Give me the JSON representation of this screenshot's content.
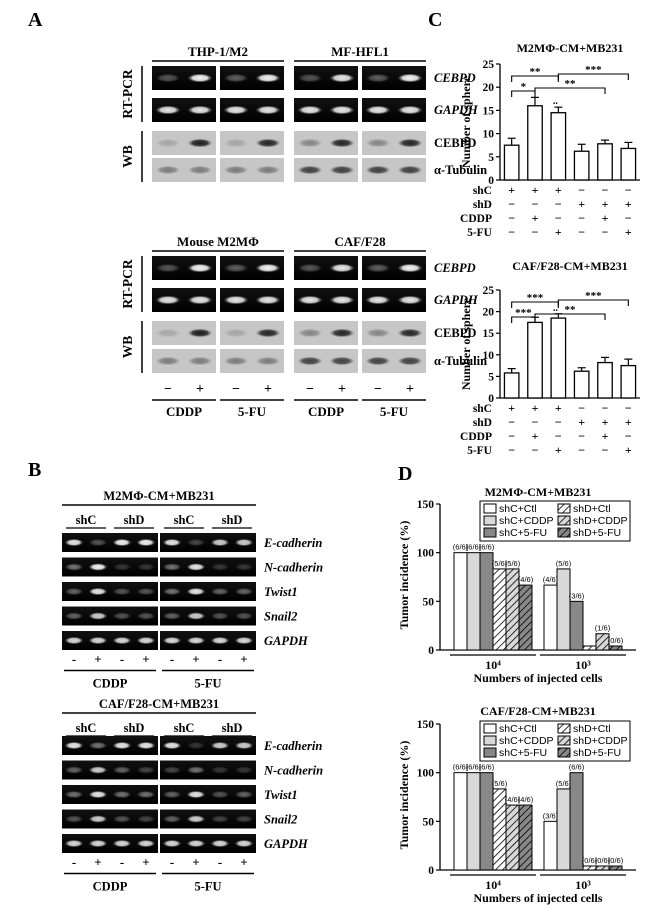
{
  "panels": {
    "A": "A",
    "B": "B",
    "C": "C",
    "D": "D"
  },
  "A": {
    "top_groups": [
      "THP-1/M2",
      "MF-HFL1"
    ],
    "bottom_groups": [
      "Mouse M2MΦ",
      "CAF/F28"
    ],
    "method_labels": [
      "RT-PCR",
      "WB"
    ],
    "genes_rt": [
      "CEBPD",
      "GAPDH"
    ],
    "genes_wb": [
      "CEBPD",
      "α-Tubulin"
    ],
    "treat_signs": [
      "−",
      "+"
    ],
    "treatments": [
      "CDDP",
      "5-FU",
      "CDDP",
      "5-FU"
    ]
  },
  "B": {
    "titles": [
      "M2MΦ-CM+MB231",
      "CAF/F28-CM+MB231"
    ],
    "sh_labels": [
      "shC",
      "shD",
      "shC",
      "shD"
    ],
    "genes": [
      "E-cadherin",
      "N-cadherin",
      "Twist1",
      "Snail2",
      "GAPDH"
    ],
    "signs": [
      "-",
      "+",
      "-",
      "+",
      "-",
      "+",
      "-",
      "+"
    ],
    "treatments": [
      "CDDP",
      "5-FU"
    ]
  },
  "C_charts": [
    {
      "title": "M2MΦ-CM+MB231",
      "ylabel": "Number of sphere",
      "ylim": [
        0,
        25
      ],
      "yticks": [
        "0",
        "5",
        "10",
        "15",
        "20",
        "25"
      ],
      "values": [
        7.5,
        16,
        14.5,
        6.2,
        7.8,
        6.8
      ],
      "errors": [
        1.5,
        1.8,
        1.2,
        1.5,
        0.8,
        1.3
      ],
      "rows": [
        {
          "label": "shC",
          "signs": [
            "+",
            "+",
            "+",
            "−",
            "−",
            "−"
          ]
        },
        {
          "label": "shD",
          "signs": [
            "−",
            "−",
            "−",
            "+",
            "+",
            "+"
          ]
        },
        {
          "label": "CDDP",
          "signs": [
            "−",
            "+",
            "−",
            "−",
            "+",
            "−"
          ]
        },
        {
          "label": "5-FU",
          "signs": [
            "−",
            "−",
            "+",
            "−",
            "−",
            "+"
          ]
        }
      ],
      "sig": [
        "**",
        "*",
        "**",
        "***",
        "**"
      ]
    },
    {
      "title": "CAF/F28-CM+MB231",
      "ylabel": "Number of sphere",
      "ylim": [
        0,
        25
      ],
      "yticks": [
        "0",
        "5",
        "10",
        "15",
        "20",
        "25"
      ],
      "values": [
        5.8,
        17.5,
        18.5,
        6.2,
        8.2,
        7.5
      ],
      "errors": [
        1.0,
        1.2,
        1.0,
        0.8,
        1.2,
        1.5
      ],
      "rows": [
        {
          "label": "shC",
          "signs": [
            "+",
            "+",
            "+",
            "−",
            "−",
            "−"
          ]
        },
        {
          "label": "shD",
          "signs": [
            "−",
            "−",
            "−",
            "+",
            "+",
            "+"
          ]
        },
        {
          "label": "CDDP",
          "signs": [
            "−",
            "+",
            "−",
            "−",
            "+",
            "−"
          ]
        },
        {
          "label": "5-FU",
          "signs": [
            "−",
            "−",
            "+",
            "−",
            "−",
            "+"
          ]
        }
      ],
      "sig": [
        "***",
        "***",
        "**",
        "***",
        "**"
      ]
    }
  ],
  "D_charts": [
    {
      "title": "M2MΦ-CM+MB231",
      "ylabel": "Tumor incidence (%)",
      "xlabel": "Numbers of injected cells",
      "ylim": [
        0,
        150
      ],
      "yticks": [
        "0",
        "50",
        "100",
        "150"
      ],
      "groups": [
        "10⁴",
        "10³"
      ],
      "legend": [
        "shC+Ctl",
        "shD+Ctl",
        "shC+CDDP",
        "shD+CDDP",
        "shC+5-FU",
        "shD+5-FU"
      ],
      "values": [
        [
          100,
          100,
          100,
          83.3,
          83.3,
          66.7
        ],
        [
          66.7,
          83.3,
          50,
          0,
          16.7,
          0
        ]
      ],
      "labels": [
        [
          "(6/6)",
          "(6/6)",
          "(6/6)",
          "(5/6)",
          "(5/6)",
          "(4/6)"
        ],
        [
          "(4/6)",
          "(5/6)",
          "(3/6)",
          "",
          "(1/6)",
          "(0/6)"
        ]
      ]
    },
    {
      "title": "CAF/F28-CM+MB231",
      "ylabel": "Tumor incidence (%)",
      "xlabel": "Numbers of injected cells",
      "ylim": [
        0,
        150
      ],
      "yticks": [
        "0",
        "50",
        "100",
        "150"
      ],
      "groups": [
        "10⁴",
        "10³"
      ],
      "legend": [
        "shC+Ctl",
        "shD+Ctl",
        "shC+CDDP",
        "shD+CDDP",
        "shC+5-FU",
        "shD+5-FU"
      ],
      "values": [
        [
          100,
          100,
          100,
          83.3,
          66.7,
          66.7
        ],
        [
          50,
          83.3,
          100,
          0,
          0,
          0
        ]
      ],
      "labels": [
        [
          "(6/6)",
          "(6/6)",
          "(6/6)",
          "(5/6)",
          "(4/6)",
          "(4/6)"
        ],
        [
          "(3/6)",
          "(5/6)",
          "(6/6)",
          "(0/6)",
          "(0/6)",
          "(0/6)"
        ]
      ]
    }
  ],
  "chart_data": [
    {
      "type": "bar",
      "title": "M2MΦ-CM+MB231",
      "ylabel": "Number of sphere",
      "ylim": [
        0,
        25
      ],
      "categories": [
        "shC",
        "shC+CDDP",
        "shC+5-FU",
        "shD",
        "shD+CDDP",
        "shD+5-FU"
      ],
      "values": [
        7.5,
        16,
        14.5,
        6.2,
        7.8,
        6.8
      ]
    },
    {
      "type": "bar",
      "title": "CAF/F28-CM+MB231",
      "ylabel": "Number of sphere",
      "ylim": [
        0,
        25
      ],
      "categories": [
        "shC",
        "shC+CDDP",
        "shC+5-FU",
        "shD",
        "shD+CDDP",
        "shD+5-FU"
      ],
      "values": [
        5.8,
        17.5,
        18.5,
        6.2,
        8.2,
        7.5
      ]
    },
    {
      "type": "bar",
      "title": "M2MΦ-CM+MB231",
      "ylabel": "Tumor incidence (%)",
      "xlabel": "Numbers of injected cells",
      "ylim": [
        0,
        150
      ],
      "categories": [
        "10⁴",
        "10³"
      ],
      "series": [
        {
          "name": "shC+Ctl",
          "values": [
            100,
            66.7
          ]
        },
        {
          "name": "shC+CDDP",
          "values": [
            100,
            83.3
          ]
        },
        {
          "name": "shC+5-FU",
          "values": [
            100,
            50
          ]
        },
        {
          "name": "shD+Ctl",
          "values": [
            83.3,
            0
          ]
        },
        {
          "name": "shD+CDDP",
          "values": [
            83.3,
            16.7
          ]
        },
        {
          "name": "shD+5-FU",
          "values": [
            66.7,
            0
          ]
        }
      ]
    },
    {
      "type": "bar",
      "title": "CAF/F28-CM+MB231",
      "ylabel": "Tumor incidence (%)",
      "xlabel": "Numbers of injected cells",
      "ylim": [
        0,
        150
      ],
      "categories": [
        "10⁴",
        "10³"
      ],
      "series": [
        {
          "name": "shC+Ctl",
          "values": [
            100,
            50
          ]
        },
        {
          "name": "shC+CDDP",
          "values": [
            100,
            83.3
          ]
        },
        {
          "name": "shC+5-FU",
          "values": [
            100,
            100
          ]
        },
        {
          "name": "shD+Ctl",
          "values": [
            83.3,
            0
          ]
        },
        {
          "name": "shD+CDDP",
          "values": [
            66.7,
            0
          ]
        },
        {
          "name": "shD+5-FU",
          "values": [
            66.7,
            0
          ]
        }
      ]
    }
  ]
}
